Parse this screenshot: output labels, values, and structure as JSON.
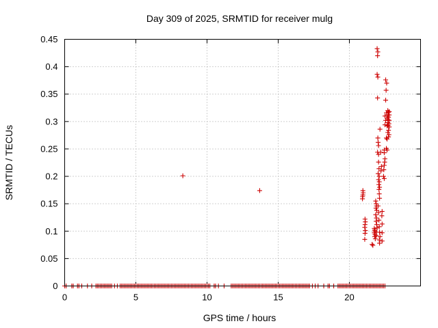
{
  "chart_data": {
    "type": "scatter",
    "title": "Day 309 of 2025, SRMTID for receiver mulg",
    "xlabel": "GPS time / hours",
    "ylabel": "SRMTID / TECUs",
    "xlim": [
      0,
      25
    ],
    "ylim": [
      0,
      0.45
    ],
    "grid": true,
    "marker": "+",
    "color": "#cc0000",
    "x_ticks": [
      0,
      5,
      10,
      15,
      20
    ],
    "x_tick_labels": [
      "0",
      "5",
      "10",
      "15",
      "20"
    ],
    "y_ticks": [
      0,
      0.05,
      0.1,
      0.15,
      0.2,
      0.25,
      0.3,
      0.35,
      0.4,
      0.45
    ],
    "y_tick_labels": [
      "0",
      "0.05",
      "0.1",
      "0.15",
      "0.2",
      "0.25",
      "0.3",
      "0.35",
      "0.4",
      "0.45"
    ],
    "zero_value_hours": [
      0.0,
      0.1,
      0.5,
      0.6,
      0.9,
      1.0,
      1.2,
      1.6,
      1.9,
      2.2,
      2.3,
      2.4,
      2.5,
      2.6,
      2.7,
      2.8,
      2.9,
      3.0,
      3.1,
      3.2,
      3.3,
      3.5,
      3.7,
      3.9,
      4.0,
      4.1,
      4.2,
      4.3,
      4.4,
      4.5,
      4.6,
      4.7,
      4.8,
      4.9,
      5.0,
      5.1,
      5.2,
      5.3,
      5.4,
      5.5,
      5.6,
      5.7,
      5.8,
      5.9,
      6.0,
      6.1,
      6.2,
      6.3,
      6.4,
      6.5,
      6.6,
      6.7,
      6.8,
      6.9,
      7.0,
      7.1,
      7.2,
      7.3,
      7.4,
      7.5,
      7.6,
      7.7,
      7.8,
      7.9,
      8.0,
      8.1,
      8.2,
      8.3,
      8.4,
      8.5,
      8.6,
      8.7,
      8.8,
      8.9,
      9.0,
      9.1,
      9.2,
      9.3,
      9.4,
      9.5,
      9.6,
      9.7,
      9.8,
      9.9,
      10.0,
      10.1,
      10.2,
      10.5,
      10.6,
      10.8,
      11.2,
      11.7,
      11.8,
      11.9,
      12.0,
      12.1,
      12.2,
      12.3,
      12.4,
      12.5,
      12.6,
      12.7,
      12.8,
      12.9,
      13.0,
      13.1,
      13.2,
      13.3,
      13.4,
      13.5,
      13.6,
      13.7,
      13.8,
      13.9,
      14.0,
      14.1,
      14.2,
      14.3,
      14.4,
      14.5,
      14.6,
      14.7,
      14.8,
      14.9,
      15.0,
      15.1,
      15.2,
      15.3,
      15.4,
      15.5,
      15.6,
      15.7,
      15.8,
      15.9,
      16.0,
      16.1,
      16.2,
      16.3,
      16.4,
      16.5,
      16.6,
      16.7,
      16.8,
      16.9,
      17.0,
      17.1,
      17.2,
      17.4,
      17.6,
      17.8,
      18.2,
      18.5,
      18.6,
      18.9,
      19.2,
      19.3,
      19.4,
      19.5,
      19.6,
      19.7,
      19.8,
      19.9,
      20.0,
      20.1,
      20.2,
      20.3,
      20.4,
      20.5,
      20.6,
      20.7,
      20.8,
      20.9,
      21.0,
      21.1,
      21.2,
      21.3,
      21.4,
      21.5,
      21.6,
      21.7,
      21.8,
      21.9,
      22.0,
      22.1,
      22.2,
      22.3,
      22.4,
      22.5
    ],
    "points": [
      [
        8.3,
        0.201
      ],
      [
        13.7,
        0.174
      ],
      [
        20.95,
        0.174
      ],
      [
        20.97,
        0.17
      ],
      [
        20.95,
        0.166
      ],
      [
        20.93,
        0.163
      ],
      [
        20.92,
        0.159
      ],
      [
        21.1,
        0.122
      ],
      [
        21.12,
        0.117
      ],
      [
        21.1,
        0.112
      ],
      [
        21.08,
        0.107
      ],
      [
        21.12,
        0.101
      ],
      [
        21.1,
        0.096
      ],
      [
        21.08,
        0.085
      ],
      [
        21.6,
        0.076
      ],
      [
        21.65,
        0.074
      ],
      [
        21.75,
        0.105
      ],
      [
        21.78,
        0.102
      ],
      [
        21.8,
        0.1
      ],
      [
        21.75,
        0.097
      ],
      [
        21.8,
        0.094
      ],
      [
        21.78,
        0.09
      ],
      [
        21.82,
        0.086
      ],
      [
        21.85,
        0.155
      ],
      [
        21.88,
        0.15
      ],
      [
        21.9,
        0.146
      ],
      [
        21.87,
        0.142
      ],
      [
        21.92,
        0.138
      ],
      [
        21.85,
        0.13
      ],
      [
        21.9,
        0.124
      ],
      [
        21.88,
        0.118
      ],
      [
        21.92,
        0.112
      ],
      [
        21.95,
        0.106
      ],
      [
        21.9,
        0.098
      ],
      [
        21.88,
        0.092
      ],
      [
        21.95,
        0.433
      ],
      [
        22.0,
        0.427
      ],
      [
        21.98,
        0.42
      ],
      [
        21.95,
        0.386
      ],
      [
        22.0,
        0.381
      ],
      [
        21.98,
        0.343
      ],
      [
        22.0,
        0.27
      ],
      [
        22.02,
        0.262
      ],
      [
        22.05,
        0.256
      ],
      [
        21.98,
        0.244
      ],
      [
        22.05,
        0.24
      ],
      [
        22.05,
        0.226
      ],
      [
        22.08,
        0.214
      ],
      [
        22.02,
        0.205
      ],
      [
        22.1,
        0.2
      ],
      [
        22.05,
        0.194
      ],
      [
        22.1,
        0.19
      ],
      [
        22.07,
        0.185
      ],
      [
        22.12,
        0.18
      ],
      [
        22.08,
        0.176
      ],
      [
        22.1,
        0.168
      ],
      [
        22.12,
        0.16
      ],
      [
        22.02,
        0.146
      ],
      [
        22.05,
        0.134
      ],
      [
        22.08,
        0.12
      ],
      [
        22.1,
        0.108
      ],
      [
        22.12,
        0.098
      ],
      [
        22.15,
        0.09
      ],
      [
        22.1,
        0.084
      ],
      [
        22.12,
        0.078
      ],
      [
        22.15,
        0.286
      ],
      [
        22.2,
        0.244
      ],
      [
        22.25,
        0.218
      ],
      [
        22.22,
        0.21
      ],
      [
        22.3,
        0.082
      ],
      [
        22.3,
        0.097
      ],
      [
        22.3,
        0.113
      ],
      [
        22.28,
        0.128
      ],
      [
        22.3,
        0.136
      ],
      [
        22.55,
        0.376
      ],
      [
        22.62,
        0.37
      ],
      [
        22.58,
        0.357
      ],
      [
        22.55,
        0.339
      ],
      [
        22.6,
        0.316
      ],
      [
        22.5,
        0.31
      ],
      [
        22.55,
        0.302
      ],
      [
        22.5,
        0.294
      ],
      [
        22.45,
        0.248
      ],
      [
        22.45,
        0.243
      ],
      [
        22.5,
        0.232
      ],
      [
        22.48,
        0.226
      ],
      [
        22.45,
        0.22
      ],
      [
        22.42,
        0.212
      ],
      [
        22.4,
        0.2
      ],
      [
        22.45,
        0.196
      ],
      [
        22.6,
        0.27
      ],
      [
        22.65,
        0.268
      ],
      [
        22.6,
        0.251
      ],
      [
        22.65,
        0.248
      ],
      [
        22.7,
        0.32
      ],
      [
        22.75,
        0.317
      ],
      [
        22.8,
        0.318
      ],
      [
        22.7,
        0.312
      ],
      [
        22.8,
        0.312
      ],
      [
        22.75,
        0.308
      ],
      [
        22.65,
        0.306
      ],
      [
        22.72,
        0.303
      ],
      [
        22.8,
        0.302
      ],
      [
        22.7,
        0.298
      ],
      [
        22.78,
        0.296
      ],
      [
        22.72,
        0.293
      ],
      [
        22.65,
        0.292
      ],
      [
        22.8,
        0.29
      ],
      [
        22.75,
        0.284
      ],
      [
        22.7,
        0.28
      ],
      [
        22.78,
        0.276
      ],
      [
        22.75,
        0.272
      ]
    ]
  }
}
